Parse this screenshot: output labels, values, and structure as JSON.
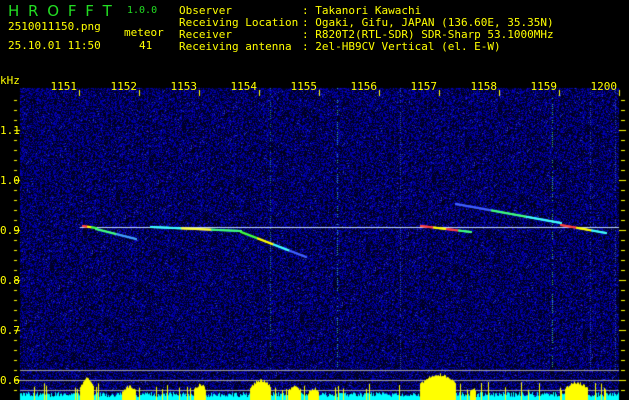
{
  "app": {
    "name": "H R O F F T",
    "version": "1.0.0"
  },
  "file": {
    "filename": "2510011150.png",
    "datetime": "25.10.01 11:50"
  },
  "meteor": {
    "label": "meteor",
    "count": "41"
  },
  "info": [
    {
      "label": "Observer",
      "value": ": Takanori Kawachi"
    },
    {
      "label": "Receiving Location",
      "value": ": Ogaki, Gifu, JAPAN (136.60E, 35.35N)"
    },
    {
      "label": "Receiver",
      "value": ": R820T2(RTL-SDR) SDR-Sharp 53.1000MHz"
    },
    {
      "label": "Receiving antenna",
      "value": ": 2el-HB9CV Vertical (el. E-W)"
    }
  ],
  "colors": {
    "text": "#ffff00",
    "logo": "#22dd22",
    "background": "#000000",
    "noise": "#1a1aa0",
    "activity_high": "#ffff00",
    "activity_low": "#00ffff"
  },
  "chart_data": {
    "type": "heatmap",
    "title": "",
    "ylabel": "kHz",
    "x_tick_labels": [
      "1151",
      "1152",
      "1153",
      "1154",
      "1155",
      "1156",
      "1157",
      "1158",
      "1159",
      "1200"
    ],
    "y_tick_labels": [
      "1.1",
      "1.0",
      "0.9",
      "0.8",
      "0.7",
      "0.6"
    ],
    "ylim": [
      0.56,
      1.18
    ],
    "carrier_khz": 0.9,
    "grid": false
  }
}
